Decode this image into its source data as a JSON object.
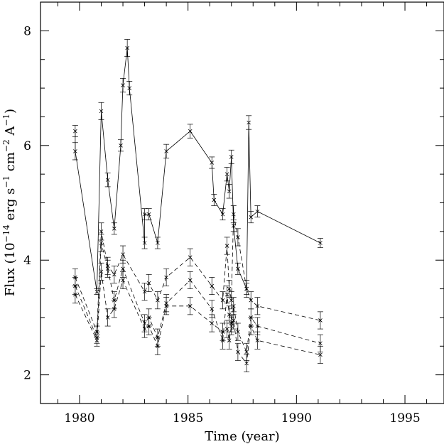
{
  "chart_data": {
    "type": "line",
    "xlabel": "Time (year)",
    "ylabel_html": [
      "Flux (10",
      "−14",
      " erg s",
      "−1",
      " cm",
      "−2",
      " A",
      "−1",
      ")"
    ],
    "xlim": [
      1978.2,
      1996.8
    ],
    "ylim": [
      1.5,
      8.5
    ],
    "x_ticks": [
      1980,
      1985,
      1990,
      1995
    ],
    "y_ticks": [
      2,
      4,
      6,
      8
    ],
    "x_minor_step": 1,
    "y_minor_step": 0.5,
    "grid": false,
    "legend": "none",
    "series": [
      {
        "style": "solid",
        "points": [
          {
            "x": 1979.8,
            "y": 6.25,
            "err": 0.1
          },
          {
            "x": 1979.8,
            "y": 5.9,
            "err": 0.15
          },
          {
            "x": 1980.8,
            "y": 3.45,
            "err": 0.05
          },
          {
            "x": 1981.0,
            "y": 6.6,
            "err": 0.15
          },
          {
            "x": 1981.3,
            "y": 5.4,
            "err": 0.12
          },
          {
            "x": 1981.6,
            "y": 4.55,
            "err": 0.1
          },
          {
            "x": 1981.9,
            "y": 6.0,
            "err": 0.1
          },
          {
            "x": 1982.0,
            "y": 7.05,
            "err": 0.12
          },
          {
            "x": 1982.2,
            "y": 7.7,
            "err": 0.15
          },
          {
            "x": 1982.3,
            "y": 7.0,
            "err": 0.12
          },
          {
            "x": 1983.0,
            "y": 4.3,
            "err": 0.1
          },
          {
            "x": 1983.0,
            "y": 4.8,
            "err": 0.1
          },
          {
            "x": 1983.2,
            "y": 4.8,
            "err": 0.1
          },
          {
            "x": 1983.6,
            "y": 4.3,
            "err": 0.1
          },
          {
            "x": 1984.0,
            "y": 5.9,
            "err": 0.12
          },
          {
            "x": 1985.1,
            "y": 6.25,
            "err": 0.12
          },
          {
            "x": 1986.1,
            "y": 5.7,
            "err": 0.1
          },
          {
            "x": 1986.2,
            "y": 5.05,
            "err": 0.1
          },
          {
            "x": 1986.6,
            "y": 4.8,
            "err": 0.1
          },
          {
            "x": 1986.8,
            "y": 5.5,
            "err": 0.12
          },
          {
            "x": 1986.9,
            "y": 5.2,
            "err": 0.12
          },
          {
            "x": 1987.0,
            "y": 5.8,
            "err": 0.12
          },
          {
            "x": 1987.1,
            "y": 4.6,
            "err": 0.1
          },
          {
            "x": 1987.3,
            "y": 3.85,
            "err": 0.1
          },
          {
            "x": 1987.7,
            "y": 3.5,
            "err": 0.1
          },
          {
            "x": 1987.8,
            "y": 6.4,
            "err": 0.12
          },
          {
            "x": 1987.9,
            "y": 4.75,
            "err": 0.1
          },
          {
            "x": 1988.2,
            "y": 4.85,
            "err": 0.1
          },
          {
            "x": 1991.1,
            "y": 4.3,
            "err": 0.08
          }
        ]
      },
      {
        "style": "dashed",
        "points": [
          {
            "x": 1979.8,
            "y": 3.7,
            "err": 0.15
          },
          {
            "x": 1980.8,
            "y": 2.75,
            "err": 0.1
          },
          {
            "x": 1981.0,
            "y": 4.5,
            "err": 0.15
          },
          {
            "x": 1981.3,
            "y": 3.9,
            "err": 0.15
          },
          {
            "x": 1981.6,
            "y": 3.75,
            "err": 0.15
          },
          {
            "x": 1982.0,
            "y": 4.1,
            "err": 0.15
          },
          {
            "x": 1983.0,
            "y": 3.45,
            "err": 0.15
          },
          {
            "x": 1983.2,
            "y": 3.6,
            "err": 0.15
          },
          {
            "x": 1983.6,
            "y": 3.3,
            "err": 0.15
          },
          {
            "x": 1984.0,
            "y": 3.7,
            "err": 0.15
          },
          {
            "x": 1985.1,
            "y": 4.05,
            "err": 0.15
          },
          {
            "x": 1986.1,
            "y": 3.55,
            "err": 0.15
          },
          {
            "x": 1986.6,
            "y": 3.3,
            "err": 0.15
          },
          {
            "x": 1986.8,
            "y": 4.25,
            "err": 0.15
          },
          {
            "x": 1986.9,
            "y": 3.5,
            "err": 0.15
          },
          {
            "x": 1987.0,
            "y": 3.3,
            "err": 0.15
          },
          {
            "x": 1987.1,
            "y": 4.8,
            "err": 0.15
          },
          {
            "x": 1987.3,
            "y": 4.4,
            "err": 0.15
          },
          {
            "x": 1987.7,
            "y": 3.5,
            "err": 0.15
          },
          {
            "x": 1987.9,
            "y": 3.3,
            "err": 0.15
          },
          {
            "x": 1988.2,
            "y": 3.2,
            "err": 0.15
          },
          {
            "x": 1991.1,
            "y": 2.95,
            "err": 0.15
          }
        ]
      },
      {
        "style": "dashed",
        "points": [
          {
            "x": 1979.8,
            "y": 3.55,
            "err": 0.15
          },
          {
            "x": 1980.8,
            "y": 2.65,
            "err": 0.1
          },
          {
            "x": 1981.0,
            "y": 4.3,
            "err": 0.15
          },
          {
            "x": 1981.3,
            "y": 3.85,
            "err": 0.15
          },
          {
            "x": 1981.6,
            "y": 3.3,
            "err": 0.15
          },
          {
            "x": 1982.0,
            "y": 3.85,
            "err": 0.15
          },
          {
            "x": 1983.0,
            "y": 2.9,
            "err": 0.15
          },
          {
            "x": 1983.2,
            "y": 3.0,
            "err": 0.15
          },
          {
            "x": 1983.6,
            "y": 2.65,
            "err": 0.15
          },
          {
            "x": 1984.0,
            "y": 3.25,
            "err": 0.15
          },
          {
            "x": 1985.1,
            "y": 3.65,
            "err": 0.15
          },
          {
            "x": 1986.1,
            "y": 3.15,
            "err": 0.15
          },
          {
            "x": 1986.6,
            "y": 2.6,
            "err": 0.15
          },
          {
            "x": 1986.8,
            "y": 3.4,
            "err": 0.15
          },
          {
            "x": 1986.9,
            "y": 3.05,
            "err": 0.15
          },
          {
            "x": 1987.0,
            "y": 2.9,
            "err": 0.15
          },
          {
            "x": 1987.1,
            "y": 3.2,
            "err": 0.15
          },
          {
            "x": 1987.3,
            "y": 2.75,
            "err": 0.15
          },
          {
            "x": 1987.7,
            "y": 2.4,
            "err": 0.15
          },
          {
            "x": 1987.9,
            "y": 3.0,
            "err": 0.15
          },
          {
            "x": 1988.2,
            "y": 2.85,
            "err": 0.15
          },
          {
            "x": 1991.1,
            "y": 2.55,
            "err": 0.15
          }
        ]
      },
      {
        "style": "dashed",
        "points": [
          {
            "x": 1979.8,
            "y": 3.4,
            "err": 0.15
          },
          {
            "x": 1980.8,
            "y": 2.6,
            "err": 0.1
          },
          {
            "x": 1981.0,
            "y": 3.8,
            "err": 0.15
          },
          {
            "x": 1981.3,
            "y": 3.0,
            "err": 0.15
          },
          {
            "x": 1981.6,
            "y": 3.15,
            "err": 0.15
          },
          {
            "x": 1982.0,
            "y": 3.65,
            "err": 0.15
          },
          {
            "x": 1983.0,
            "y": 2.8,
            "err": 0.15
          },
          {
            "x": 1983.2,
            "y": 2.85,
            "err": 0.15
          },
          {
            "x": 1983.6,
            "y": 2.5,
            "err": 0.15
          },
          {
            "x": 1984.0,
            "y": 3.2,
            "err": 0.15
          },
          {
            "x": 1985.1,
            "y": 3.2,
            "err": 0.15
          },
          {
            "x": 1986.1,
            "y": 2.9,
            "err": 0.15
          },
          {
            "x": 1986.6,
            "y": 2.75,
            "err": 0.15
          },
          {
            "x": 1986.8,
            "y": 2.8,
            "err": 0.15
          },
          {
            "x": 1986.9,
            "y": 2.6,
            "err": 0.15
          },
          {
            "x": 1987.0,
            "y": 2.85,
            "err": 0.15
          },
          {
            "x": 1987.1,
            "y": 2.95,
            "err": 0.15
          },
          {
            "x": 1987.3,
            "y": 2.4,
            "err": 0.15
          },
          {
            "x": 1987.7,
            "y": 2.2,
            "err": 0.15
          },
          {
            "x": 1987.9,
            "y": 2.85,
            "err": 0.15
          },
          {
            "x": 1988.2,
            "y": 2.6,
            "err": 0.15
          },
          {
            "x": 1991.1,
            "y": 2.35,
            "err": 0.15
          }
        ]
      }
    ]
  }
}
